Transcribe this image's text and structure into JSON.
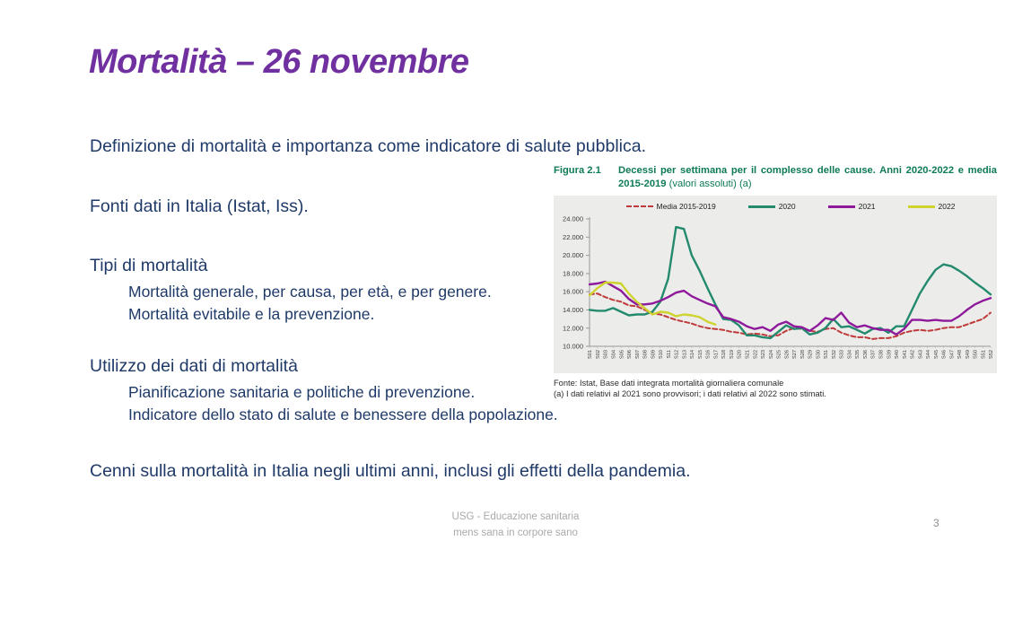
{
  "slide": {
    "title": "Mortalità – 26 novembre",
    "paragraphs": [
      {
        "text": "Definizione di mortalità e importanza come indicatore di salute pubblica.",
        "level": 0
      },
      {
        "text": "Fonti dati in Italia (Istat, Iss).",
        "level": 0
      },
      {
        "text": "Tipi di mortalità",
        "level": 0
      },
      {
        "text": "Mortalità generale, per causa, per età, e per genere.",
        "level": 1
      },
      {
        "text": "Mortalità evitabile e la prevenzione.",
        "level": 1
      },
      {
        "text": "Utilizzo dei dati di mortalità",
        "level": 0
      },
      {
        "text": "Pianificazione sanitaria e politiche di prevenzione.",
        "level": 1
      },
      {
        "text": "Indicatore dello stato di salute e benessere della popolazione.",
        "level": 1
      },
      {
        "text": "Cenni sulla mortalità in Italia negli ultimi anni, inclusi gli effetti della pandemia.",
        "level": 0
      }
    ],
    "footer": {
      "line1": "USG - Educazione sanitaria",
      "line2": "mens sana in corpore sano",
      "page_number": "3"
    },
    "colors": {
      "title": "#7030a0",
      "body_text": "#1f3a68",
      "caption_green": "#0e7b55",
      "footer_gray": "#a9a9a9",
      "chart_background": "#ECECEA"
    }
  },
  "figure": {
    "label": "Figura 2.1",
    "caption_bold": "Decessi per settimana per il complesso delle cause. Anni 2020-2022 e media 2015-2019",
    "caption_regular": " (valori assoluti) (a)",
    "source_line1": "Fonte: Istat, Base dati integrata mortalità giornaliera comunale",
    "source_line2": " (a) I dati relativi al 2021 sono provvisori; i dati relativi al 2022 sono stimati."
  },
  "chart_data": {
    "type": "line",
    "title": "Decessi per settimana per il complesso delle cause. Anni 2020-2022 e media 2015-2019 (valori assoluti) (a)",
    "xlabel": "",
    "ylabel": "",
    "ylim": [
      10000,
      24000
    ],
    "ytick_step": 2000,
    "grid": false,
    "legend_position": "top",
    "x": [
      "S01",
      "S02",
      "S03",
      "S04",
      "S05",
      "S06",
      "S07",
      "S08",
      "S09",
      "S10",
      "S11",
      "S12",
      "S13",
      "S14",
      "S15",
      "S16",
      "S17",
      "S18",
      "S19",
      "S20",
      "S21",
      "S22",
      "S23",
      "S24",
      "S25",
      "S26",
      "S27",
      "S28",
      "S29",
      "S30",
      "S31",
      "S32",
      "S33",
      "S34",
      "S35",
      "S36",
      "S37",
      "S38",
      "S39",
      "S40",
      "S41",
      "S42",
      "S43",
      "S44",
      "S45",
      "S46",
      "S47",
      "S48",
      "S49",
      "S50",
      "S51",
      "S52"
    ],
    "series": [
      {
        "name": "Media 2015-2019",
        "color": "#bf3a3a",
        "style": "dashed",
        "values": [
          15700,
          15800,
          15400,
          15100,
          14900,
          14500,
          14400,
          14000,
          13600,
          13500,
          13200,
          12900,
          12700,
          12500,
          12200,
          12000,
          11900,
          11800,
          11600,
          11500,
          11300,
          11400,
          11300,
          11100,
          11200,
          11700,
          12000,
          11900,
          11700,
          11600,
          11900,
          12000,
          11500,
          11200,
          11000,
          11000,
          10800,
          10900,
          10900,
          11100,
          11500,
          11700,
          11800,
          11700,
          11800,
          12000,
          12100,
          12100,
          12400,
          12700,
          13000,
          13700
        ]
      },
      {
        "name": "2020",
        "color": "#238a6e",
        "style": "solid",
        "values": [
          14000,
          13900,
          13900,
          14200,
          13800,
          13400,
          13500,
          13500,
          13800,
          14900,
          17400,
          23100,
          22900,
          20000,
          18300,
          16400,
          14600,
          13000,
          12900,
          12300,
          11200,
          11200,
          11000,
          10900,
          11600,
          12300,
          11900,
          12000,
          11300,
          11500,
          12000,
          13000,
          12100,
          12200,
          11800,
          11400,
          11900,
          12000,
          11500,
          12200,
          12200,
          14000,
          15800,
          17200,
          18400,
          19000,
          18800,
          18300,
          17700,
          17000,
          16400,
          15700
        ]
      },
      {
        "name": "2021",
        "color": "#8e1a9b",
        "style": "solid",
        "values": [
          16800,
          16900,
          17100,
          16600,
          16100,
          15200,
          14600,
          14600,
          14700,
          15000,
          15400,
          15900,
          16100,
          15500,
          15100,
          14700,
          14400,
          13200,
          13000,
          12700,
          12200,
          11900,
          12100,
          11700,
          12400,
          12700,
          12200,
          12100,
          11700,
          12300,
          13100,
          12900,
          13700,
          12600,
          12100,
          12300,
          12000,
          11800,
          11800,
          11300,
          11900,
          12900,
          12900,
          12800,
          12900,
          12800,
          12800,
          13300,
          14000,
          14600,
          15000,
          15300
        ]
      },
      {
        "name": "2022",
        "color": "#cfd32e",
        "style": "solid",
        "values": [
          15600,
          16400,
          17000,
          17000,
          16900,
          15800,
          14900,
          14200,
          13500,
          13800,
          13700,
          13300,
          13500,
          13400,
          13200,
          12700,
          12400
        ]
      }
    ]
  }
}
